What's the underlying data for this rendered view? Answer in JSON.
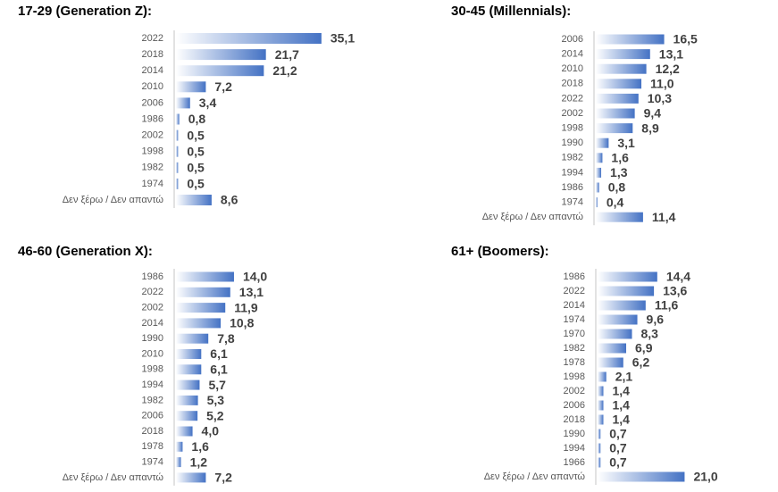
{
  "chart_data": [
    {
      "type": "bar",
      "title": "17-29 (Generation Z):",
      "color": "#4472c4",
      "categories": [
        "2022",
        "2018",
        "2014",
        "2010",
        "2006",
        "1986",
        "2002",
        "1998",
        "1982",
        "1974",
        "Δεν ξέρω / Δεν απαντώ"
      ],
      "values": [
        35.1,
        21.7,
        21.2,
        7.2,
        3.4,
        0.8,
        0.5,
        0.5,
        0.5,
        0.5,
        8.6
      ],
      "value_labels": [
        "35,1",
        "21,7",
        "21,2",
        "7,2",
        "3,4",
        "0,8",
        "0,5",
        "0,5",
        "0,5",
        "0,5",
        "8,6"
      ]
    },
    {
      "type": "bar",
      "title": "30-45 (Millennials):",
      "color": "#4472c4",
      "categories": [
        "2006",
        "2014",
        "2010",
        "2018",
        "2022",
        "2002",
        "1998",
        "1990",
        "1982",
        "1994",
        "1986",
        "1974",
        "Δεν ξέρω / Δεν απαντώ"
      ],
      "values": [
        16.5,
        13.1,
        12.2,
        11.0,
        10.3,
        9.4,
        8.9,
        3.1,
        1.6,
        1.3,
        0.8,
        0.4,
        11.4
      ],
      "value_labels": [
        "16,5",
        "13,1",
        "12,2",
        "11,0",
        "10,3",
        "9,4",
        "8,9",
        "3,1",
        "1,6",
        "1,3",
        "0,8",
        "0,4",
        "11,4"
      ]
    },
    {
      "type": "bar",
      "title": "46-60 (Generation X):",
      "color": "#4472c4",
      "categories": [
        "1986",
        "2022",
        "2002",
        "2014",
        "1990",
        "2010",
        "1998",
        "1994",
        "1982",
        "2006",
        "2018",
        "1978",
        "1974",
        "Δεν ξέρω / Δεν απαντώ"
      ],
      "values": [
        14.0,
        13.1,
        11.9,
        10.8,
        7.8,
        6.1,
        6.1,
        5.7,
        5.3,
        5.2,
        4.0,
        1.6,
        1.2,
        7.2
      ],
      "value_labels": [
        "14,0",
        "13,1",
        "11,9",
        "10,8",
        "7,8",
        "6,1",
        "6,1",
        "5,7",
        "5,3",
        "5,2",
        "4,0",
        "1,6",
        "1,2",
        "7,2"
      ]
    },
    {
      "type": "bar",
      "title": "61+ (Boomers):",
      "color": "#4472c4",
      "categories": [
        "1986",
        "2022",
        "2014",
        "1974",
        "1970",
        "1982",
        "1978",
        "1998",
        "2002",
        "2006",
        "2018",
        "1990",
        "1994",
        "1966",
        "Δεν ξέρω / Δεν απαντώ"
      ],
      "values": [
        14.4,
        13.6,
        11.6,
        9.6,
        8.3,
        6.9,
        6.2,
        2.1,
        1.4,
        1.4,
        1.4,
        0.7,
        0.7,
        0.7,
        21.0
      ],
      "value_labels": [
        "14,4",
        "13,6",
        "11,6",
        "9,6",
        "8,3",
        "6,9",
        "6,2",
        "2,1",
        "1,4",
        "1,4",
        "1,4",
        "0,7",
        "0,7",
        "0,7",
        "21,0"
      ]
    }
  ]
}
